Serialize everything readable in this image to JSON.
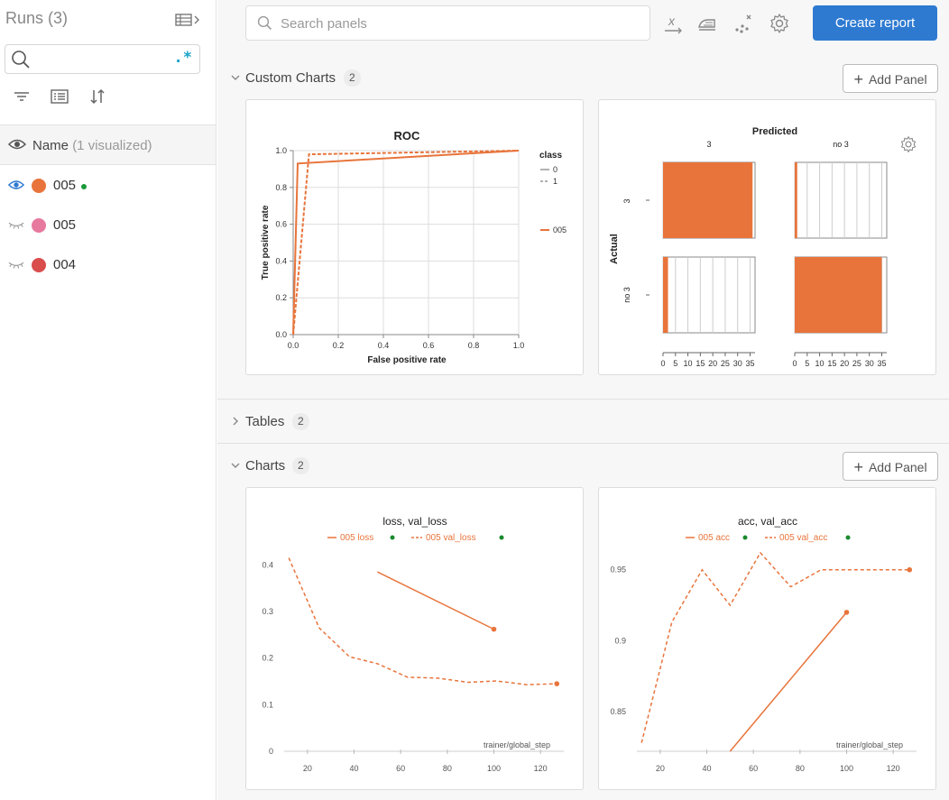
{
  "sidebar": {
    "title": "Runs",
    "count": "(3)",
    "search": {
      "value": "",
      "placeholder": "",
      "regex_label": ".*"
    },
    "name_header": {
      "label": "Name",
      "sub": "(1 visualized)"
    },
    "runs": [
      {
        "name": "005",
        "color": "#e8743b",
        "visible": true,
        "live": true
      },
      {
        "name": "005",
        "color": "#e8799e",
        "visible": false,
        "live": false
      },
      {
        "name": "004",
        "color": "#d94d4d",
        "visible": false,
        "live": false
      }
    ]
  },
  "topbar": {
    "search_placeholder": "Search panels",
    "create_report_label": "Create report",
    "icons": [
      "x-axis-icon",
      "smoothing-icon",
      "outliers-icon",
      "settings-gear-icon"
    ]
  },
  "sections": {
    "custom_charts": {
      "title": "Custom Charts",
      "count": "2",
      "add_panel_label": "Add Panel"
    },
    "tables": {
      "title": "Tables",
      "count": "2"
    },
    "charts": {
      "title": "Charts",
      "count": "2",
      "add_panel_label": "Add Panel"
    }
  },
  "colors": {
    "run_orange": "#e8743b",
    "accent_blue": "#2e7ad1"
  },
  "chart_data": [
    {
      "type": "line",
      "title": "ROC",
      "xlabel": "False positive rate",
      "ylabel": "True positive rate",
      "xlim": [
        0,
        1
      ],
      "ylim": [
        0,
        1
      ],
      "x_ticks": [
        "0.0",
        "0.2",
        "0.4",
        "0.6",
        "0.8",
        "1.0"
      ],
      "y_ticks": [
        "0.0",
        "0.2",
        "0.4",
        "0.6",
        "0.8",
        "1.0"
      ],
      "legend_title": "class",
      "legend": [
        "0",
        "1",
        "005"
      ],
      "grid": true,
      "series": [
        {
          "name": "0",
          "style": "solid",
          "x": [
            0,
            0.02,
            1.0
          ],
          "y": [
            0,
            0.93,
            1.0
          ]
        },
        {
          "name": "1",
          "style": "dashed",
          "x": [
            0,
            0.07,
            1.0
          ],
          "y": [
            0,
            0.98,
            1.0
          ]
        }
      ]
    },
    {
      "type": "heatmap",
      "title": "Predicted",
      "ylabel": "Actual",
      "columns": [
        "3",
        "no 3"
      ],
      "rows": [
        "3",
        "no 3"
      ],
      "cells": [
        [
          36,
          1
        ],
        [
          2,
          35
        ]
      ],
      "xlim": [
        0,
        37
      ],
      "x_ticks": [
        "0",
        "5",
        "10",
        "15",
        "20",
        "25",
        "30",
        "35"
      ]
    },
    {
      "type": "line",
      "title": "loss, val_loss",
      "xlabel": "trainer/global_step",
      "legend": [
        "005 loss",
        "005 val_loss"
      ],
      "xlim": [
        10,
        130
      ],
      "ylim": [
        0,
        0.42
      ],
      "x_ticks": [
        20,
        40,
        60,
        80,
        100,
        120
      ],
      "y_ticks": [
        "0",
        "0.1",
        "0.2",
        "0.3",
        "0.4"
      ],
      "series": [
        {
          "name": "005 loss",
          "style": "solid",
          "x": [
            50,
            100
          ],
          "y": [
            0.385,
            0.262
          ]
        },
        {
          "name": "005 val_loss",
          "style": "dashed",
          "x": [
            12,
            25,
            38,
            50,
            63,
            76,
            89,
            101,
            114,
            127
          ],
          "y": [
            0.415,
            0.265,
            0.203,
            0.188,
            0.159,
            0.157,
            0.148,
            0.151,
            0.143,
            0.145
          ]
        }
      ]
    },
    {
      "type": "line",
      "title": "acc, val_acc",
      "xlabel": "trainer/global_step",
      "legend": [
        "005 acc",
        "005 val_acc"
      ],
      "xlim": [
        10,
        130
      ],
      "ylim": [
        0.822,
        0.96
      ],
      "x_ticks": [
        20,
        40,
        60,
        80,
        100,
        120
      ],
      "y_ticks": [
        "0.85",
        "0.9",
        "0.95"
      ],
      "series": [
        {
          "name": "005 acc",
          "style": "solid",
          "x": [
            50,
            100
          ],
          "y": [
            0.822,
            0.92
          ]
        },
        {
          "name": "005 val_acc",
          "style": "dashed",
          "x": [
            12,
            25,
            38,
            50,
            63,
            76,
            89,
            101,
            114,
            127
          ],
          "y": [
            0.828,
            0.913,
            0.95,
            0.925,
            0.962,
            0.938,
            0.95,
            0.95,
            0.95,
            0.95
          ]
        }
      ]
    }
  ]
}
